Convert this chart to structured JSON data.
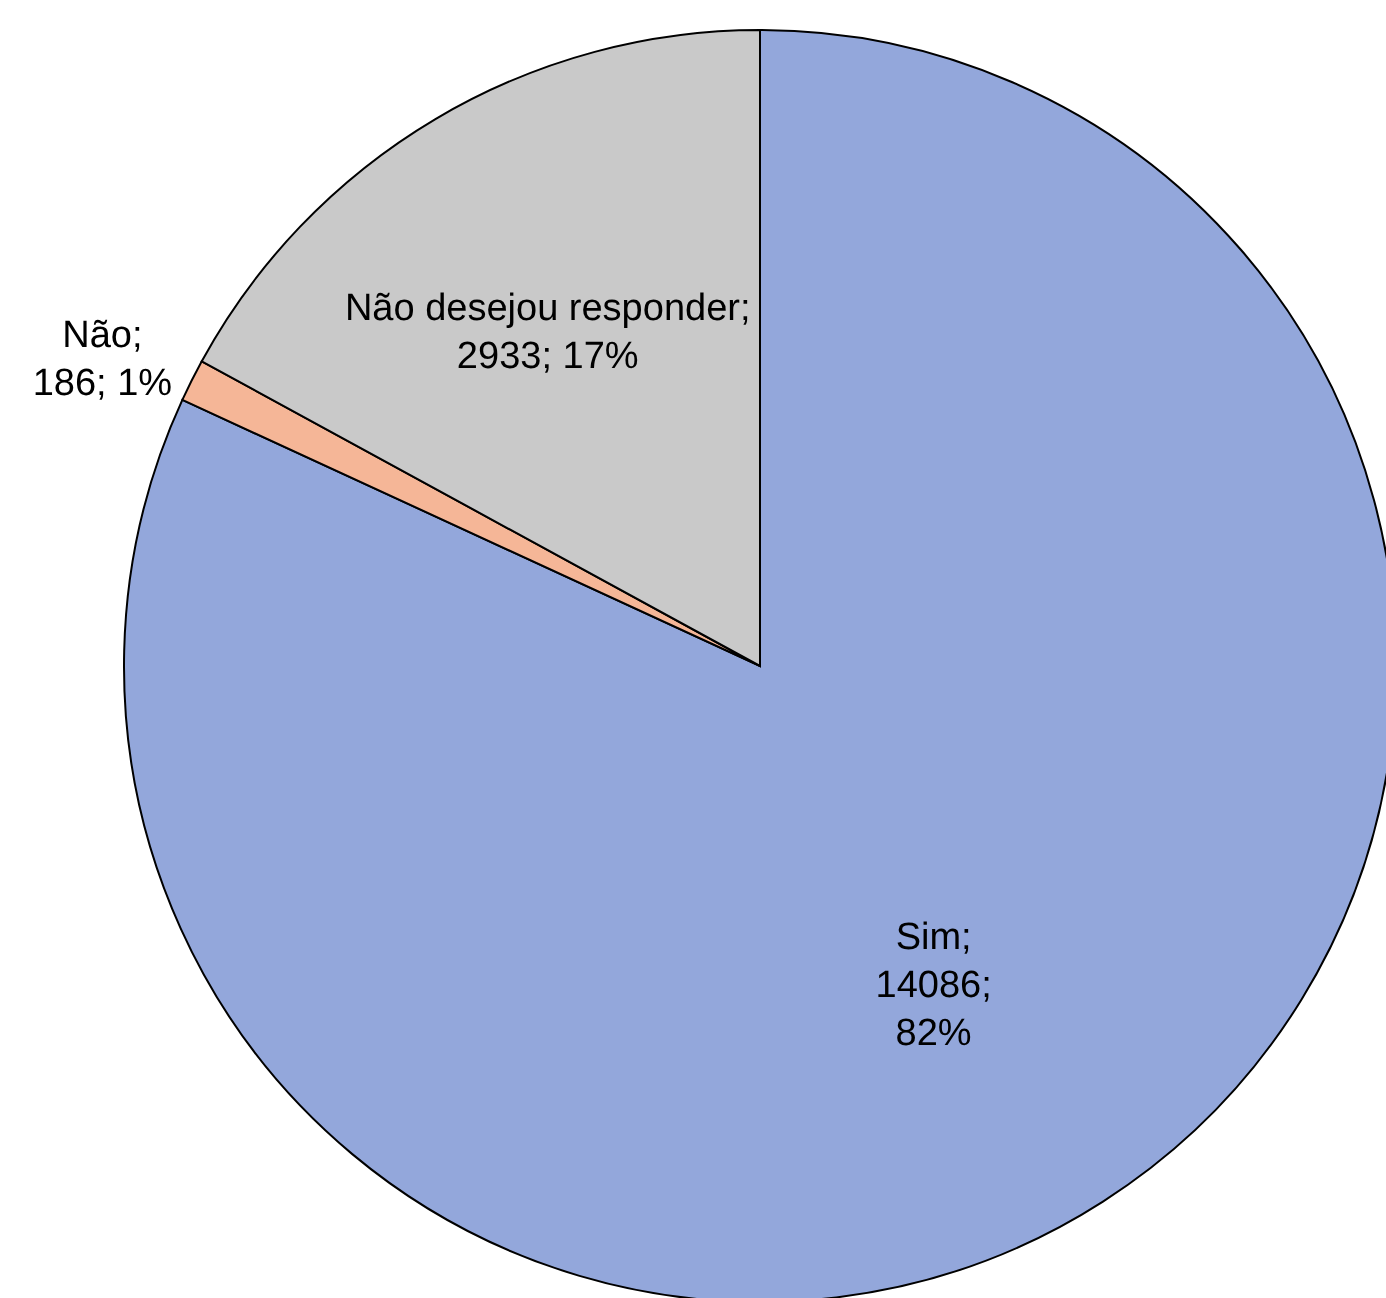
{
  "chart_data": {
    "type": "pie",
    "categories": [
      "Sim",
      "Não",
      "Não desejou responder"
    ],
    "values": [
      14086,
      186,
      2933
    ],
    "colors": [
      "#93a7db",
      "#f5b697",
      "#c9c9c9"
    ],
    "value_labels": [
      ";\n14086;\n82%",
      ";\n186; 1%",
      ";\n2933; 17%"
    ]
  }
}
